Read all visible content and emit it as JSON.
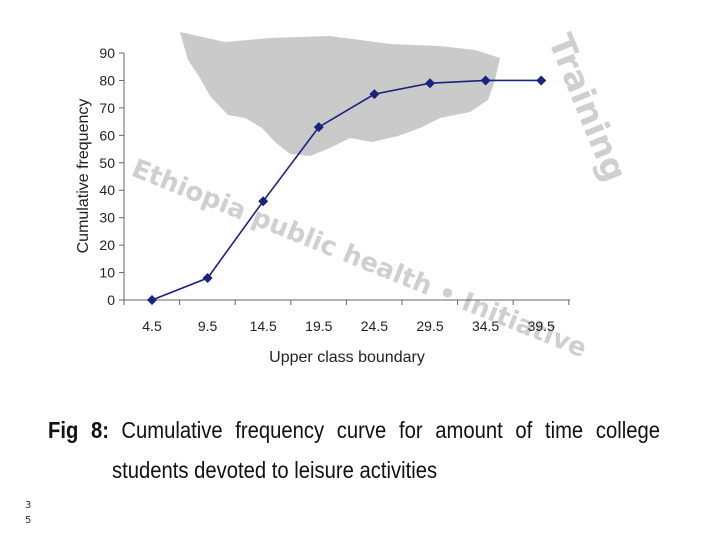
{
  "chart_data": {
    "type": "line",
    "categories": [
      "4.5",
      "9.5",
      "14.5",
      "19.5",
      "24.5",
      "29.5",
      "34.5",
      "39.5"
    ],
    "series": [
      {
        "values": [
          0,
          8,
          36,
          63,
          75,
          79,
          80,
          80
        ],
        "color": "#1a237e"
      }
    ],
    "xlabel": "Upper class boundary",
    "ylabel": "Cumulative frequency",
    "ylim": [
      0,
      90
    ],
    "yticks": [
      0,
      10,
      20,
      30,
      40,
      50,
      60,
      70,
      80,
      90
    ],
    "grid": false,
    "marker": "diamond"
  },
  "watermark": {
    "text_top": "Training",
    "text_bottom": "Ethiopia public health • Initiative",
    "color": "#b0b0b0"
  },
  "caption": {
    "fig_label": "Fig 8:",
    "line1": "Cumulative frequency curve for amount of time college",
    "line2": "students devoted to leisure activities"
  },
  "page_number": {
    "line1": "3",
    "line2": "5"
  }
}
